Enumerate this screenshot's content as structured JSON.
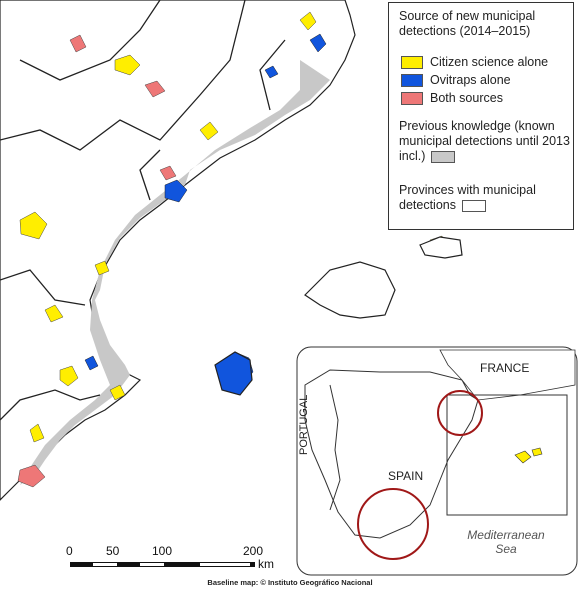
{
  "legend": {
    "title": "Source of new municipal detections (2014–2015)",
    "items": [
      {
        "label": "Citizen science alone",
        "color": "#ffee00"
      },
      {
        "label": "Ovitraps alone",
        "color": "#1155dd"
      },
      {
        "label": "Both sources",
        "color": "#ee7777"
      }
    ],
    "previous": "Previous knowledge (known municipal detections until 2013 incl.)",
    "previous_color": "#c8c8c8",
    "provinces": "Provinces with municipal detections"
  },
  "scale": {
    "ticks": [
      "0",
      "50",
      "100",
      "200"
    ],
    "unit": "km"
  },
  "inset": {
    "labels": {
      "france": "FRANCE",
      "portugal": "PORTUGAL",
      "spain": "SPAIN",
      "sea": "Mediterranean Sea"
    }
  },
  "credit": "Baseline map: © Instituto Geográfico Nacional"
}
